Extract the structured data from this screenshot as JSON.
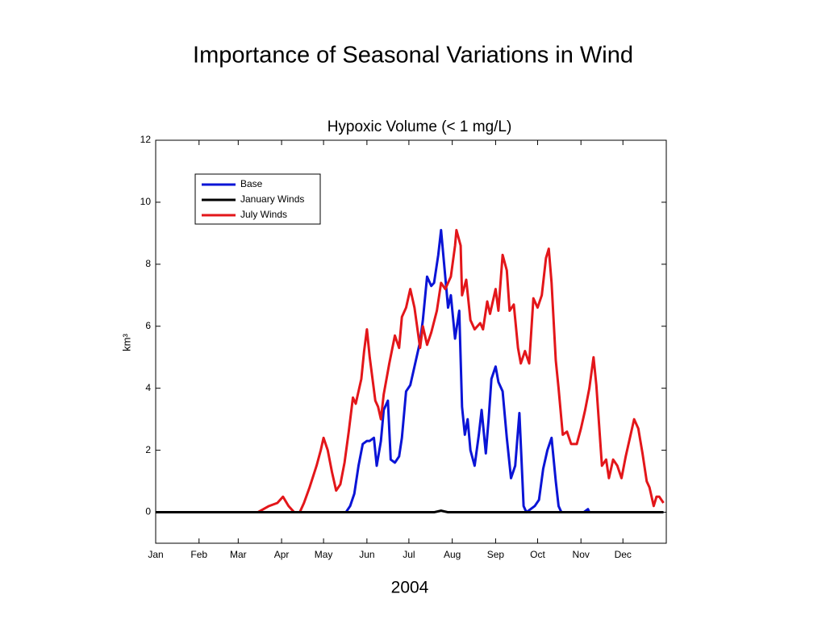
{
  "chart_data": {
    "type": "line",
    "title": "Importance of Seasonal Variations in Wind",
    "subtitle": "Hypoxic Volume (< 1 mg/L)",
    "x_label": "2004",
    "y_label": "km³",
    "xlim": [
      1,
      366
    ],
    "xticks": [
      {
        "value": 1,
        "label": "Jan"
      },
      {
        "value": 32,
        "label": "Feb"
      },
      {
        "value": 60,
        "label": "Mar"
      },
      {
        "value": 91,
        "label": "Apr"
      },
      {
        "value": 121,
        "label": "May"
      },
      {
        "value": 152,
        "label": "Jun"
      },
      {
        "value": 182,
        "label": "Jul"
      },
      {
        "value": 213,
        "label": "Aug"
      },
      {
        "value": 244,
        "label": "Sep"
      },
      {
        "value": 274,
        "label": "Oct"
      },
      {
        "value": 305,
        "label": "Nov"
      },
      {
        "value": 335,
        "label": "Dec"
      }
    ],
    "ylim": [
      -1,
      12
    ],
    "yticks": [
      0,
      2,
      4,
      6,
      8,
      10,
      12
    ],
    "grid": false,
    "legend": "upper left",
    "series": [
      {
        "name": "Base",
        "color": "#0a14d6",
        "x": [
          1,
          137,
          140,
          143,
          146,
          149,
          152,
          154,
          157,
          159,
          162,
          164,
          167,
          169,
          172,
          175,
          177,
          180,
          183,
          186,
          190,
          192,
          195,
          198,
          200,
          203,
          205,
          207,
          210,
          212,
          215,
          218,
          220,
          222,
          224,
          226,
          229,
          232,
          234,
          237,
          239,
          241,
          244,
          246,
          249,
          252,
          255,
          258,
          261,
          264,
          266,
          272,
          275,
          278,
          281,
          284,
          287,
          289,
          291,
          307,
          310,
          311,
          364
        ],
        "values": [
          0,
          0,
          0.2,
          0.6,
          1.5,
          2.2,
          2.3,
          2.3,
          2.4,
          1.5,
          2.3,
          3.3,
          3.6,
          1.7,
          1.6,
          1.8,
          2.4,
          3.9,
          4.1,
          4.7,
          5.5,
          6.2,
          7.6,
          7.3,
          7.4,
          8.3,
          9.1,
          8.1,
          6.6,
          7.0,
          5.6,
          6.5,
          3.4,
          2.5,
          3.0,
          2.0,
          1.5,
          2.5,
          3.3,
          1.9,
          3.0,
          4.3,
          4.7,
          4.2,
          3.9,
          2.4,
          1.1,
          1.5,
          3.2,
          0.2,
          0,
          0.2,
          0.4,
          1.4,
          2.0,
          2.4,
          1.0,
          0.2,
          0,
          0,
          0.1,
          0,
          0
        ]
      },
      {
        "name": "January Winds",
        "color": "#000000",
        "x": [
          1,
          200,
          205,
          210,
          364
        ],
        "values": [
          0,
          0,
          0.05,
          0,
          0
        ]
      },
      {
        "name": "July Winds",
        "color": "#e3161a",
        "x": [
          1,
          74,
          82,
          88,
          92,
          96,
          100,
          104,
          107,
          111,
          116,
          119,
          121,
          124,
          127,
          130,
          133,
          136,
          139,
          142,
          144,
          148,
          150,
          152,
          154,
          158,
          160,
          162,
          164,
          168,
          172,
          175,
          177,
          180,
          183,
          186,
          190,
          192,
          195,
          198,
          202,
          205,
          208,
          212,
          215,
          216,
          219,
          220,
          223,
          226,
          229,
          233,
          235,
          238,
          240,
          244,
          246,
          249,
          252,
          254,
          257,
          260,
          262,
          265,
          268,
          271,
          274,
          277,
          280,
          282,
          284,
          287,
          289,
          292,
          295,
          298,
          302,
          305,
          308,
          311,
          314,
          316,
          320,
          323,
          325,
          328,
          331,
          334,
          337,
          341,
          343,
          346,
          349,
          352,
          354,
          357,
          359,
          361,
          364
        ],
        "values": [
          0,
          0,
          0.2,
          0.3,
          0.5,
          0.2,
          0,
          0,
          0.3,
          0.8,
          1.5,
          2.0,
          2.4,
          2.0,
          1.3,
          0.7,
          0.9,
          1.6,
          2.6,
          3.7,
          3.5,
          4.3,
          5.2,
          5.9,
          5.0,
          3.6,
          3.4,
          3.0,
          3.8,
          4.8,
          5.7,
          5.3,
          6.3,
          6.6,
          7.2,
          6.6,
          5.3,
          6.0,
          5.4,
          5.8,
          6.5,
          7.4,
          7.2,
          7.6,
          8.6,
          9.1,
          8.6,
          7.0,
          7.5,
          6.2,
          5.9,
          6.1,
          5.9,
          6.8,
          6.4,
          7.2,
          6.5,
          8.3,
          7.8,
          6.5,
          6.7,
          5.3,
          4.8,
          5.2,
          4.8,
          6.9,
          6.6,
          7.0,
          8.2,
          8.5,
          7.4,
          4.9,
          4.0,
          2.5,
          2.6,
          2.2,
          2.2,
          2.7,
          3.3,
          4.0,
          5.0,
          4.1,
          1.5,
          1.7,
          1.1,
          1.7,
          1.5,
          1.1,
          1.8,
          2.6,
          3.0,
          2.7,
          1.9,
          1.0,
          0.8,
          0.2,
          0.5,
          0.5,
          0.3
        ]
      }
    ]
  }
}
